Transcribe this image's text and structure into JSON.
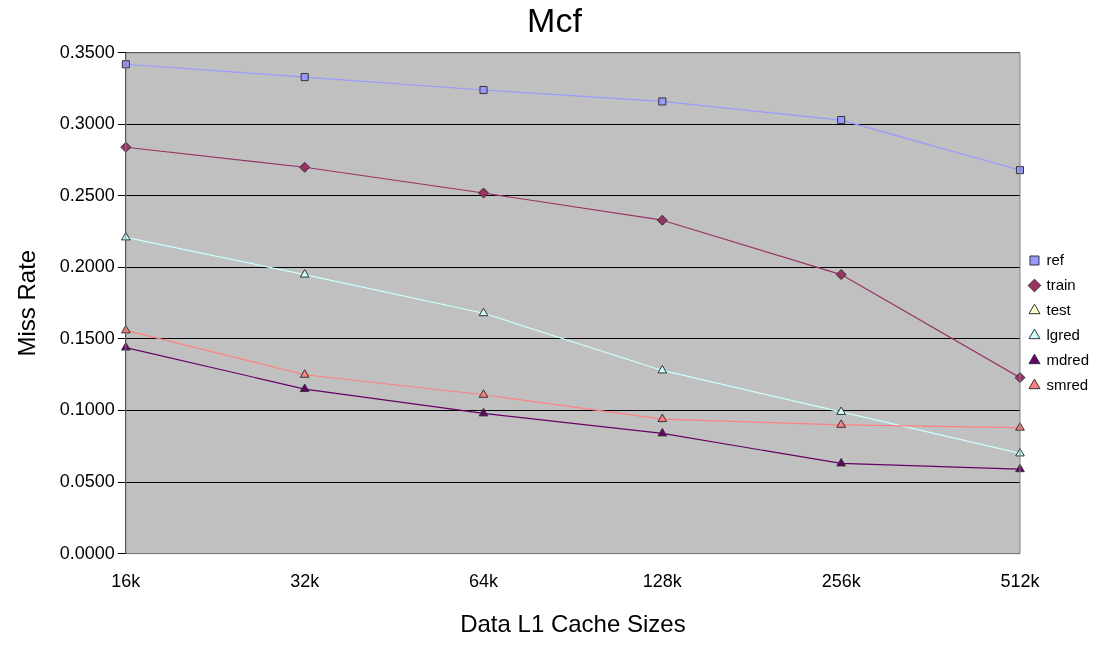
{
  "chart_data": {
    "type": "line",
    "title": "Mcf",
    "xlabel": "Data L1 Cache Sizes",
    "ylabel": "Miss Rate",
    "categories": [
      "16k",
      "32k",
      "64k",
      "128k",
      "256k",
      "512k"
    ],
    "series": [
      {
        "name": "ref",
        "color": "#9999ff",
        "marker": "square",
        "values": [
          0.342,
          0.333,
          0.324,
          0.316,
          0.303,
          0.268
        ]
      },
      {
        "name": "train",
        "color": "#993366",
        "marker": "diamond",
        "values": [
          0.284,
          0.27,
          0.252,
          0.233,
          0.195,
          0.123
        ]
      },
      {
        "name": "test",
        "color": "#ffffcc",
        "marker": "triangle",
        "values": [
          null,
          null,
          null,
          null,
          null,
          null
        ]
      },
      {
        "name": "lgred",
        "color": "#ccffff",
        "marker": "triangle",
        "values": [
          0.221,
          0.195,
          0.168,
          0.128,
          0.099,
          0.07
        ]
      },
      {
        "name": "mdred",
        "color": "#660066",
        "marker": "triangle",
        "values": [
          0.144,
          0.115,
          0.098,
          0.084,
          0.063,
          0.059
        ]
      },
      {
        "name": "smred",
        "color": "#ff8080",
        "marker": "triangle",
        "values": [
          0.156,
          0.125,
          0.111,
          0.094,
          0.09,
          0.088
        ]
      }
    ],
    "ylim": [
      0,
      0.35
    ],
    "yticks": [
      {
        "value": 0,
        "label": "0.0000"
      },
      {
        "value": 0.05,
        "label": "0.0500"
      },
      {
        "value": 0.1,
        "label": "0.1000"
      },
      {
        "value": 0.15,
        "label": "0.1500"
      },
      {
        "value": 0.2,
        "label": "0.2000"
      },
      {
        "value": 0.25,
        "label": "0.2500"
      },
      {
        "value": 0.3,
        "label": "0.3000"
      },
      {
        "value": 0.35,
        "label": "0.3500"
      }
    ],
    "grid": "y",
    "legend": "right"
  }
}
